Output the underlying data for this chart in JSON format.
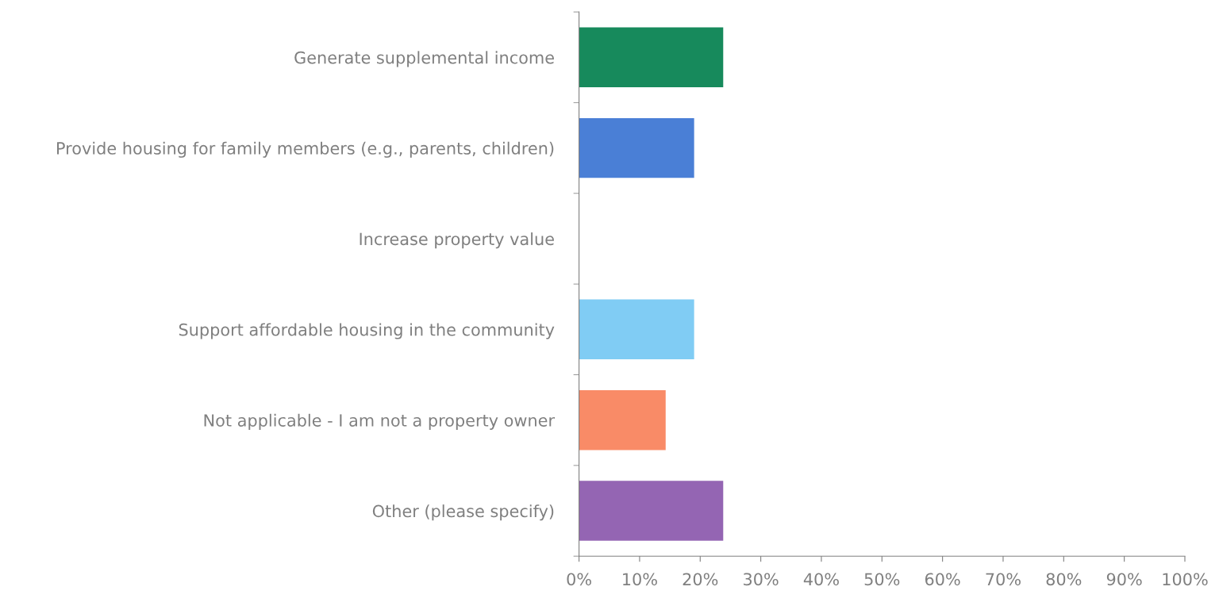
{
  "chart_data": {
    "type": "bar",
    "orientation": "horizontal",
    "categories": [
      "Generate supplemental income",
      "Provide housing for family members (e.g., parents, children)",
      "Increase property value",
      "Support affordable housing in the community",
      "Not applicable - I am not a property owner",
      "Other (please specify)"
    ],
    "values": [
      23.8,
      19.0,
      0,
      19.0,
      14.3,
      23.8
    ],
    "colors": [
      "#178a5c",
      "#4a7fd6",
      "#ffffff",
      "#80ccf4",
      "#f98b67",
      "#9465b3"
    ],
    "xlim": [
      0,
      100
    ],
    "xticks": [
      {
        "value": 0,
        "label": "0%"
      },
      {
        "value": 10,
        "label": "10%"
      },
      {
        "value": 20,
        "label": "20%"
      },
      {
        "value": 30,
        "label": "30%"
      },
      {
        "value": 40,
        "label": "40%"
      },
      {
        "value": 50,
        "label": "50%"
      },
      {
        "value": 60,
        "label": "60%"
      },
      {
        "value": 70,
        "label": "70%"
      },
      {
        "value": 80,
        "label": "80%"
      },
      {
        "value": 90,
        "label": "90%"
      },
      {
        "value": 100,
        "label": "100%"
      }
    ],
    "grid": false
  }
}
